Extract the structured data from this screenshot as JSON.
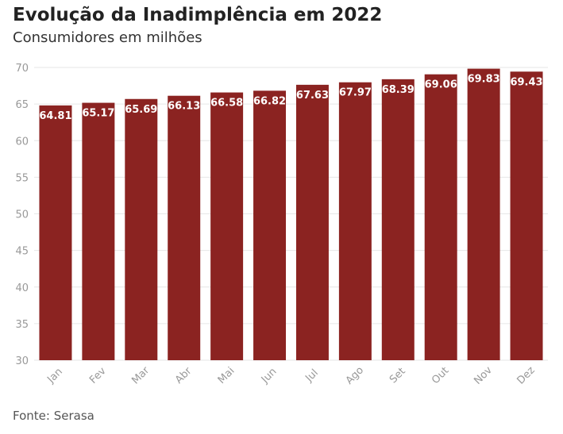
{
  "header": {
    "title": "Evolução da Inadimplência em 2022",
    "subtitle": "Consumidores em milhões"
  },
  "footer": {
    "source": "Fonte: Serasa"
  },
  "colors": {
    "bar": "#8b2321",
    "grid": "#e6e6e6",
    "axis_text": "#999999",
    "label_text": "#ffffff"
  },
  "chart_data": {
    "type": "bar",
    "title": "Evolução da Inadimplência em 2022",
    "subtitle": "Consumidores em milhões",
    "xlabel": "",
    "ylabel": "",
    "categories": [
      "Jan",
      "Fev",
      "Mar",
      "Abr",
      "Mai",
      "Jun",
      "Jul",
      "Ago",
      "Set",
      "Out",
      "Nov",
      "Dez"
    ],
    "values": [
      64.81,
      65.17,
      65.69,
      66.13,
      66.58,
      66.82,
      67.63,
      67.97,
      68.39,
      69.06,
      69.83,
      69.43
    ],
    "ylim": [
      30,
      70
    ],
    "yticks": [
      30,
      35,
      40,
      45,
      50,
      55,
      60,
      65,
      70
    ],
    "grid": true,
    "legend": "none",
    "data_labels": true
  }
}
